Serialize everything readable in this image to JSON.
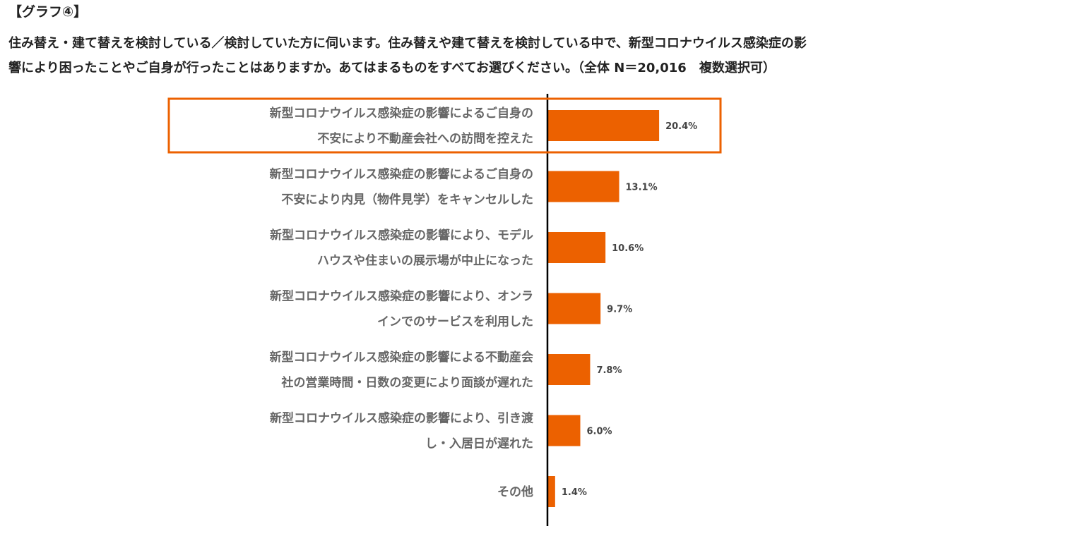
{
  "heading": "【グラフ④】",
  "question": {
    "line1": "住み替え・建て替えを検討している／検討していた方に伺います。住み替えや建て替えを検討している中で、新型コロナウイルス感染症の影",
    "line2": "響により困ったことやご自身が行ったことはありますか。あてはまるものをすべてお選びください。（全体 N＝20,016　複数選択可）"
  },
  "colors": {
    "bar": "#ec6100",
    "highlight_border": "#ec6100",
    "axis": "#000000"
  },
  "chart_data": {
    "type": "bar",
    "orientation": "horizontal",
    "categories": [
      [
        "新型コロナウイルス感染症の影響によるご自身の",
        "不安により不動産会社への訪問を控えた"
      ],
      [
        "新型コロナウイルス感染症の影響によるご自身の",
        "不安により内見（物件見学）をキャンセルした"
      ],
      [
        "新型コロナウイルス感染症の影響により、モデル",
        "ハウスや住まいの展示場が中止になった"
      ],
      [
        "新型コロナウイルス感染症の影響により、オンラ",
        "インでのサービスを利用した"
      ],
      [
        "新型コロナウイルス感染症の影響による不動産会",
        "社の営業時間・日数の変更により面談が遅れた"
      ],
      [
        "新型コロナウイルス感染症の影響により、引き渡",
        "し・入居日が遅れた"
      ],
      [
        "その他"
      ]
    ],
    "values": [
      20.4,
      13.1,
      10.6,
      9.7,
      7.8,
      6.0,
      1.4
    ],
    "value_labels": [
      "20.4%",
      "13.1%",
      "10.6%",
      "9.7%",
      "7.8%",
      "6.0%",
      "1.4%"
    ],
    "highlighted_index": 0,
    "grid": false
  }
}
